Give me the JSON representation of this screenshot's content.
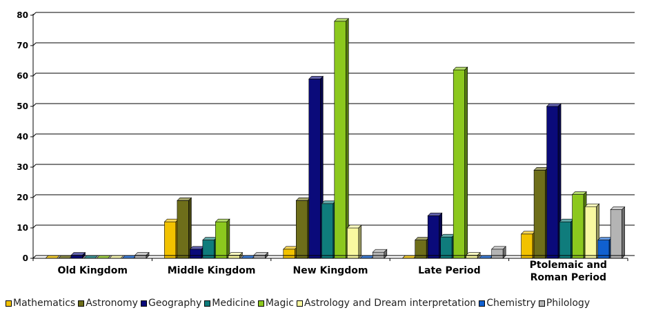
{
  "chart_data": {
    "type": "bar",
    "categories": [
      "Old Kingdom",
      "Middle Kingdom",
      "New Kingdom",
      "Late Period",
      "Ptolemaic and Roman Period"
    ],
    "series": [
      {
        "name": "Mathematics",
        "color": "#F2C200",
        "values": [
          0,
          12,
          3,
          0,
          8
        ]
      },
      {
        "name": "Astronomy",
        "color": "#6E6E1A",
        "values": [
          0,
          19,
          19,
          6,
          29
        ]
      },
      {
        "name": "Geography",
        "color": "#0A0A7A",
        "values": [
          1,
          3,
          59,
          14,
          50
        ]
      },
      {
        "name": "Medicine",
        "color": "#0F7C7C",
        "values": [
          0,
          6,
          18,
          7,
          12
        ]
      },
      {
        "name": "Magic",
        "color": "#8CC81E",
        "values": [
          0,
          12,
          78,
          62,
          21
        ]
      },
      {
        "name": "Astrology and Dream interpretation",
        "color": "#F8F8A0",
        "values": [
          0,
          1,
          10,
          1,
          17
        ]
      },
      {
        "name": "Chemistry",
        "color": "#1060D0",
        "values": [
          0,
          0,
          0,
          0,
          6
        ]
      },
      {
        "name": "Philology",
        "color": "#B4B4B4",
        "values": [
          1,
          1,
          2,
          3,
          16
        ]
      }
    ],
    "title": "",
    "xlabel": "",
    "ylabel": "",
    "ylim": [
      0,
      80
    ],
    "yticks": [
      0,
      10,
      20,
      30,
      40,
      50,
      60,
      70,
      80
    ],
    "grid": true,
    "legend": "bottom"
  }
}
